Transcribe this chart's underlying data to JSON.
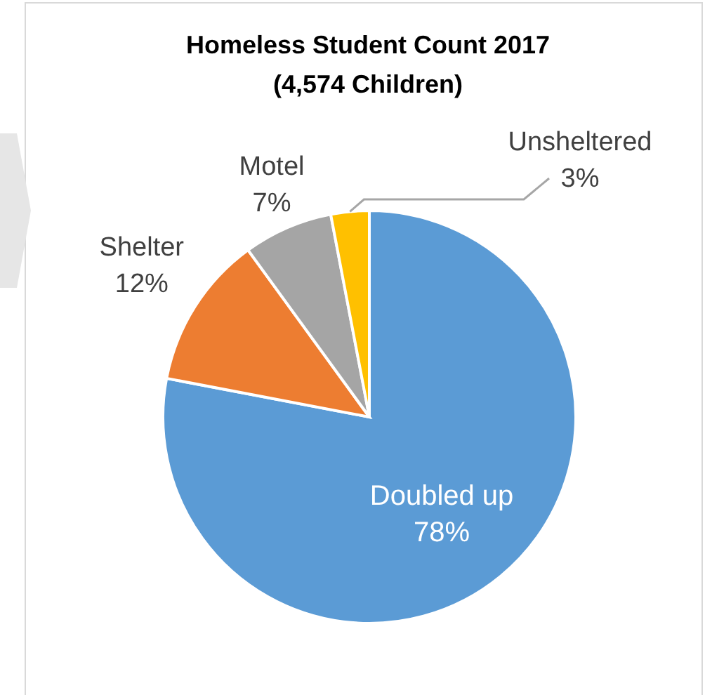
{
  "chart_data": {
    "type": "pie",
    "title": "Homeless Student Count 2017",
    "subtitle": "(4,574 Children)",
    "categories": [
      "Doubled up",
      "Shelter",
      "Motel",
      "Unsheltered"
    ],
    "values": [
      78,
      12,
      7,
      3
    ],
    "value_labels": [
      "78%",
      "12%",
      "7%",
      "3%"
    ],
    "colors": [
      "#5b9bd5",
      "#ed7d31",
      "#a5a5a5",
      "#ffc000"
    ]
  }
}
